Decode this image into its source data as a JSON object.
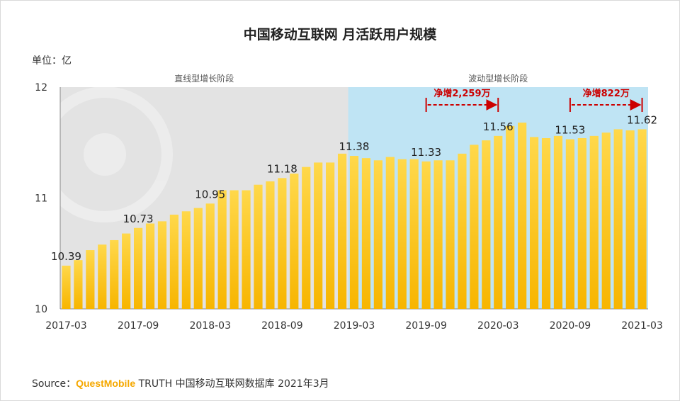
{
  "title": "中国移动互联网 月活跃用户规模",
  "unit_label": "单位：亿",
  "source": {
    "prefix": "Source：",
    "brand": "QuestMobile",
    "suffix": "TRUTH 中国移动互联网数据库 2021年3月"
  },
  "colors": {
    "bar_top": "#ffd84a",
    "bar_bottom": "#f7b500",
    "bg_phase1": "#e3e3e3",
    "bg_phase2": "#bfe4f4",
    "annotation": "#cc0000"
  },
  "chart_data": {
    "type": "bar",
    "title": "中国移动互联网 月活跃用户规模",
    "ylabel": "单位：亿",
    "ylim": [
      10,
      12
    ],
    "yticks": [
      10,
      11,
      12
    ],
    "grid": false,
    "xticks": [
      "2017-03",
      "2017-09",
      "2018-03",
      "2018-09",
      "2019-03",
      "2019-09",
      "2020-03",
      "2020-09",
      "2021-03"
    ],
    "categories": [
      "2017-03",
      "2017-04",
      "2017-05",
      "2017-06",
      "2017-07",
      "2017-08",
      "2017-09",
      "2017-10",
      "2017-11",
      "2017-12",
      "2018-01",
      "2018-02",
      "2018-03",
      "2018-04",
      "2018-05",
      "2018-06",
      "2018-07",
      "2018-08",
      "2018-09",
      "2018-10",
      "2018-11",
      "2018-12",
      "2019-01",
      "2019-02",
      "2019-03",
      "2019-04",
      "2019-05",
      "2019-06",
      "2019-07",
      "2019-08",
      "2019-09",
      "2019-10",
      "2019-11",
      "2019-12",
      "2020-01",
      "2020-02",
      "2020-03",
      "2020-04",
      "2020-05",
      "2020-06",
      "2020-07",
      "2020-08",
      "2020-09",
      "2020-10",
      "2020-11",
      "2020-12",
      "2021-01",
      "2021-02",
      "2021-03"
    ],
    "values": [
      10.39,
      10.44,
      10.53,
      10.58,
      10.62,
      10.68,
      10.73,
      10.77,
      10.79,
      10.85,
      10.88,
      10.91,
      10.95,
      11.07,
      11.07,
      11.07,
      11.12,
      11.15,
      11.18,
      11.22,
      11.28,
      11.32,
      11.32,
      11.4,
      11.38,
      11.36,
      11.34,
      11.37,
      11.35,
      11.35,
      11.33,
      11.34,
      11.34,
      11.4,
      11.48,
      11.52,
      11.56,
      11.65,
      11.68,
      11.55,
      11.54,
      11.56,
      11.53,
      11.54,
      11.56,
      11.59,
      11.62,
      11.61,
      11.62
    ],
    "data_labels": [
      {
        "x": "2017-03",
        "value": "10.39"
      },
      {
        "x": "2017-09",
        "value": "10.73"
      },
      {
        "x": "2018-03",
        "value": "10.95"
      },
      {
        "x": "2018-09",
        "value": "11.18"
      },
      {
        "x": "2019-03",
        "value": "11.38"
      },
      {
        "x": "2019-09",
        "value": "11.33"
      },
      {
        "x": "2020-03",
        "value": "11.56"
      },
      {
        "x": "2020-09",
        "value": "11.53"
      },
      {
        "x": "2021-03",
        "value": "11.62"
      }
    ],
    "phases": [
      {
        "label": "直线型增长阶段",
        "start": "2017-03",
        "end": "2019-02"
      },
      {
        "label": "波动型增长阶段",
        "start": "2019-03",
        "end": "2021-03"
      }
    ],
    "annotations": [
      {
        "label": "净增2,259万",
        "from": "2019-09",
        "to": "2020-03"
      },
      {
        "label": "净增822万",
        "from": "2020-09",
        "to": "2021-03"
      }
    ]
  }
}
